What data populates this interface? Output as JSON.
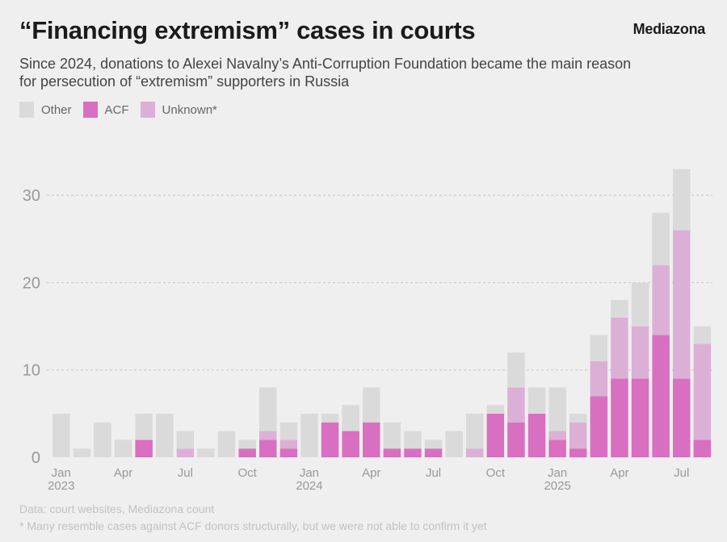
{
  "header": {
    "title": "“Financing extremism” cases in courts",
    "brand": "Mediazona",
    "subtitle": "Since 2024, donations to Alexei Navalny’s Anti-Corruption Foundation became the main reason for persecution of “extremism” supporters in Russia"
  },
  "footer": {
    "source": "Data: court websites, Mediazona count",
    "note": "* Many resemble cases against ACF donors structurally, but we were not able to confirm it yet"
  },
  "chart_data": {
    "type": "bar",
    "stacked": true,
    "title": "“Financing extremism” cases in courts",
    "xlabel": "",
    "ylabel": "",
    "ylim": [
      0,
      33
    ],
    "yticks": [
      0,
      10,
      20,
      30
    ],
    "grid": true,
    "legend_position": "top-left",
    "legend": [
      {
        "name": "Other",
        "color": "#dadada"
      },
      {
        "name": "ACF",
        "color": "#d96fc0"
      },
      {
        "name": "Unknown*",
        "color": "#dcb0d6"
      }
    ],
    "categories": [
      "2023-01",
      "2023-02",
      "2023-03",
      "2023-04",
      "2023-05",
      "2023-06",
      "2023-07",
      "2023-08",
      "2023-09",
      "2023-10",
      "2023-11",
      "2023-12",
      "2024-01",
      "2024-02",
      "2024-03",
      "2024-04",
      "2024-05",
      "2024-06",
      "2024-07",
      "2024-08",
      "2024-09",
      "2024-10",
      "2024-11",
      "2024-12",
      "2025-01",
      "2025-02",
      "2025-03",
      "2025-04",
      "2025-05",
      "2025-06",
      "2025-07",
      "2025-08"
    ],
    "xtick_labels": [
      {
        "index": 0,
        "month": "Jan",
        "year": "2023"
      },
      {
        "index": 3,
        "month": "Apr",
        "year": ""
      },
      {
        "index": 6,
        "month": "Jul",
        "year": ""
      },
      {
        "index": 9,
        "month": "Oct",
        "year": ""
      },
      {
        "index": 12,
        "month": "Jan",
        "year": "2024"
      },
      {
        "index": 15,
        "month": "Apr",
        "year": ""
      },
      {
        "index": 18,
        "month": "Jul",
        "year": ""
      },
      {
        "index": 21,
        "month": "Oct",
        "year": ""
      },
      {
        "index": 24,
        "month": "Jan",
        "year": "2025"
      },
      {
        "index": 27,
        "month": "Apr",
        "year": ""
      },
      {
        "index": 30,
        "month": "Jul",
        "year": ""
      }
    ],
    "series": [
      {
        "name": "ACF",
        "color": "#d96fc0",
        "values": [
          0,
          0,
          0,
          0,
          2,
          0,
          0,
          0,
          0,
          1,
          2,
          1,
          0,
          4,
          3,
          4,
          1,
          1,
          1,
          0,
          0,
          5,
          4,
          5,
          2,
          1,
          7,
          9,
          9,
          14,
          9,
          2
        ]
      },
      {
        "name": "Unknown*",
        "color": "#dcb0d6",
        "values": [
          0,
          0,
          0,
          0,
          0,
          0,
          1,
          0,
          0,
          0,
          1,
          1,
          0,
          0,
          0,
          0,
          0,
          0,
          0,
          0,
          1,
          0,
          4,
          0,
          1,
          3,
          4,
          7,
          6,
          8,
          17,
          11
        ]
      },
      {
        "name": "Other",
        "color": "#dadada",
        "values": [
          5,
          1,
          4,
          2,
          3,
          5,
          2,
          1,
          3,
          1,
          5,
          2,
          5,
          1,
          3,
          4,
          3,
          2,
          1,
          3,
          4,
          1,
          4,
          3,
          5,
          1,
          3,
          2,
          5,
          6,
          7,
          2
        ]
      }
    ]
  }
}
